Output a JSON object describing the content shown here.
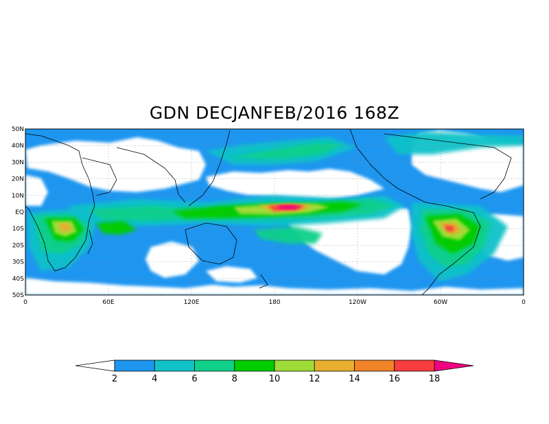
{
  "title": "GDN DECJANFEB/2016 168Z",
  "map": {
    "lat_labels": [
      "50N",
      "40N",
      "30N",
      "20N",
      "10N",
      "EQ",
      "10S",
      "20S",
      "30S",
      "40S",
      "50S"
    ],
    "lon_labels": [
      "0",
      "60E",
      "120E",
      "180",
      "120W",
      "60W",
      "0"
    ],
    "lat_range": [
      -50,
      50
    ],
    "lon_range": [
      0,
      360
    ],
    "grid": "dotted"
  },
  "colorbar": {
    "levels": [
      "2",
      "4",
      "6",
      "8",
      "10",
      "12",
      "14",
      "16",
      "18"
    ],
    "colors": [
      "#ffffff",
      "#1e96f0",
      "#10c2c8",
      "#10d08a",
      "#00cc00",
      "#a0dc38",
      "#e6af2d",
      "#f08228",
      "#fa3c3c",
      "#f00082"
    ]
  }
}
